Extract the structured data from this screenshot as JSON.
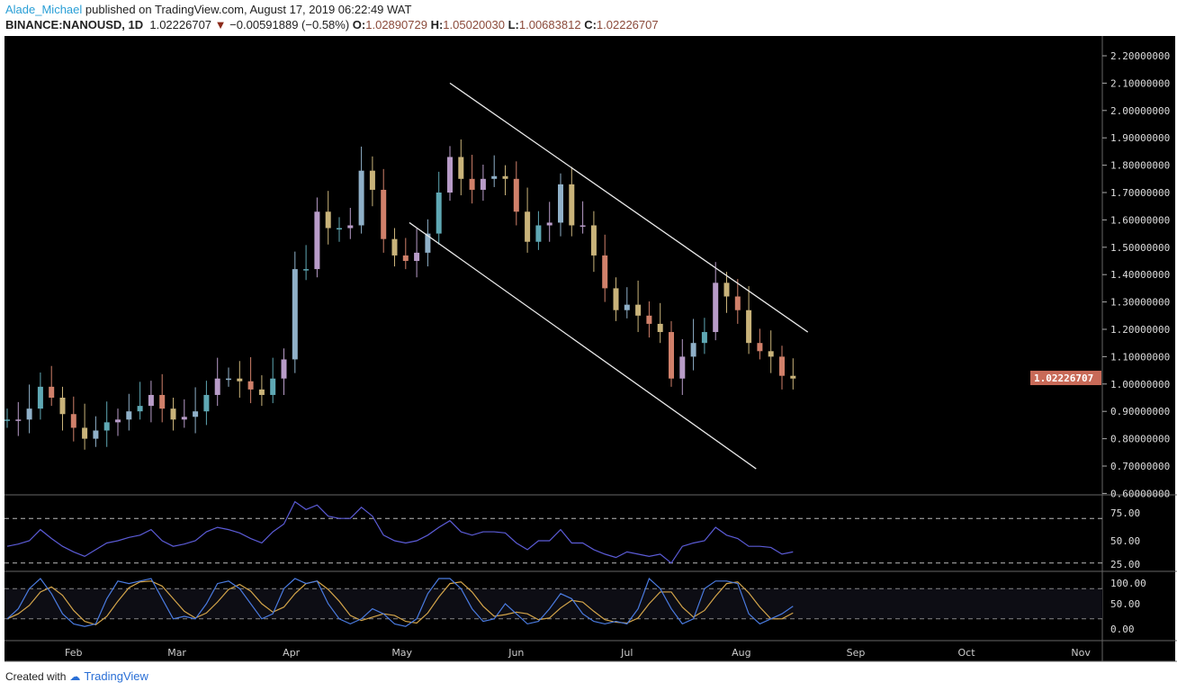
{
  "header": {
    "author": "Alade_Michael",
    "published": "published on TradingView.com, August 17, 2019 06:22:49 WAT",
    "symbol": "BINANCE:NANOUSD, 1D",
    "last": "1.02226707",
    "change": "−0.00591889 (−0.58%)",
    "o_label": "O:",
    "o": "1.02890729",
    "h_label": "H:",
    "h": "1.05020030",
    "l_label": "L:",
    "l": "1.00683812",
    "c_label": "C:",
    "c": "1.02226707"
  },
  "footer": {
    "created_with": "Created with",
    "brand": "TradingView"
  },
  "colors": {
    "background": "#000000",
    "trendline": "#e8e8e8",
    "rsi": "#5b5bd6",
    "stoch_k": "#4a7be0",
    "stoch_d": "#d4a54a",
    "price_label": "#c86a58"
  },
  "chart_data": [
    {
      "type": "candlestick",
      "series_name": "BINANCE:NANOUSD, 1D",
      "start_date": "2019-01-14",
      "interval_days": 3,
      "closes": [
        0.87,
        0.87,
        0.91,
        0.99,
        0.95,
        0.89,
        0.84,
        0.8,
        0.83,
        0.86,
        0.87,
        0.9,
        0.92,
        0.96,
        0.91,
        0.87,
        0.88,
        0.9,
        0.96,
        1.02,
        1.02,
        1.01,
        0.98,
        0.96,
        1.02,
        1.09,
        1.42,
        1.42,
        1.63,
        1.57,
        1.57,
        1.58,
        1.78,
        1.71,
        1.53,
        1.47,
        1.45,
        1.48,
        1.55,
        1.7,
        1.83,
        1.75,
        1.71,
        1.75,
        1.76,
        1.75,
        1.63,
        1.52,
        1.58,
        1.59,
        1.73,
        1.58,
        1.58,
        1.47,
        1.35,
        1.27,
        1.29,
        1.25,
        1.22,
        1.19,
        1.02,
        1.1,
        1.15,
        1.19,
        1.37,
        1.32,
        1.27,
        1.15,
        1.12,
        1.1,
        1.03,
        1.02
      ],
      "ylim": [
        0.6,
        2.2
      ],
      "y_ticks": [
        "2.20000000",
        "2.10000000",
        "2.00000000",
        "1.90000000",
        "1.80000000",
        "1.70000000",
        "1.60000000",
        "1.50000000",
        "1.40000000",
        "1.30000000",
        "1.20000000",
        "1.10000000",
        "1.00000000",
        "0.90000000",
        "0.80000000",
        "0.70000000",
        "0.60000000"
      ],
      "current_price": "1.02226707",
      "x_ticks": [
        {
          "label": "Feb",
          "date": "2019-02-01"
        },
        {
          "label": "Mar",
          "date": "2019-03-01"
        },
        {
          "label": "Apr",
          "date": "2019-04-01"
        },
        {
          "label": "May",
          "date": "2019-05-01"
        },
        {
          "label": "Jun",
          "date": "2019-06-01"
        },
        {
          "label": "Jul",
          "date": "2019-07-01"
        },
        {
          "label": "Aug",
          "date": "2019-08-01"
        },
        {
          "label": "Sep",
          "date": "2019-09-01"
        },
        {
          "label": "Oct",
          "date": "2019-10-01"
        },
        {
          "label": "Nov",
          "date": "2019-11-01"
        }
      ],
      "trendlines": [
        {
          "from": {
            "date": "2019-05-14",
            "price": 2.1
          },
          "to": {
            "date": "2019-08-19",
            "price": 1.19
          }
        },
        {
          "from": {
            "date": "2019-05-03",
            "price": 1.59
          },
          "to": {
            "date": "2019-08-05",
            "price": 0.69
          }
        }
      ]
    },
    {
      "type": "line",
      "indicator": "RSI",
      "values": [
        45,
        47,
        50,
        60,
        52,
        45,
        40,
        36,
        42,
        48,
        50,
        53,
        55,
        60,
        50,
        45,
        47,
        50,
        58,
        62,
        60,
        57,
        52,
        48,
        58,
        65,
        85,
        78,
        82,
        72,
        70,
        70,
        80,
        72,
        55,
        50,
        48,
        50,
        55,
        62,
        68,
        58,
        55,
        58,
        58,
        57,
        48,
        42,
        50,
        50,
        60,
        48,
        48,
        42,
        38,
        35,
        40,
        38,
        36,
        38,
        30,
        45,
        48,
        50,
        62,
        55,
        52,
        45,
        45,
        44,
        38,
        40
      ],
      "ylim": [
        25,
        80
      ],
      "y_ticks": [
        "75.00",
        "50.00",
        "25.00"
      ],
      "bands": [
        70,
        30
      ]
    },
    {
      "type": "line",
      "indicator": "Stochastic",
      "k_values": [
        20,
        40,
        80,
        100,
        70,
        30,
        10,
        5,
        10,
        60,
        95,
        90,
        95,
        100,
        60,
        20,
        25,
        20,
        50,
        90,
        95,
        80,
        50,
        20,
        30,
        80,
        100,
        90,
        95,
        50,
        20,
        10,
        20,
        40,
        30,
        10,
        5,
        20,
        70,
        100,
        100,
        80,
        40,
        15,
        20,
        50,
        30,
        10,
        15,
        40,
        70,
        60,
        30,
        15,
        10,
        15,
        10,
        40,
        100,
        80,
        40,
        10,
        20,
        80,
        95,
        95,
        90,
        30,
        10,
        20,
        30,
        45
      ],
      "ylim": [
        0,
        100
      ],
      "y_ticks": [
        "100.00",
        "50.00",
        "0.00"
      ],
      "bands": [
        80,
        20
      ]
    }
  ]
}
